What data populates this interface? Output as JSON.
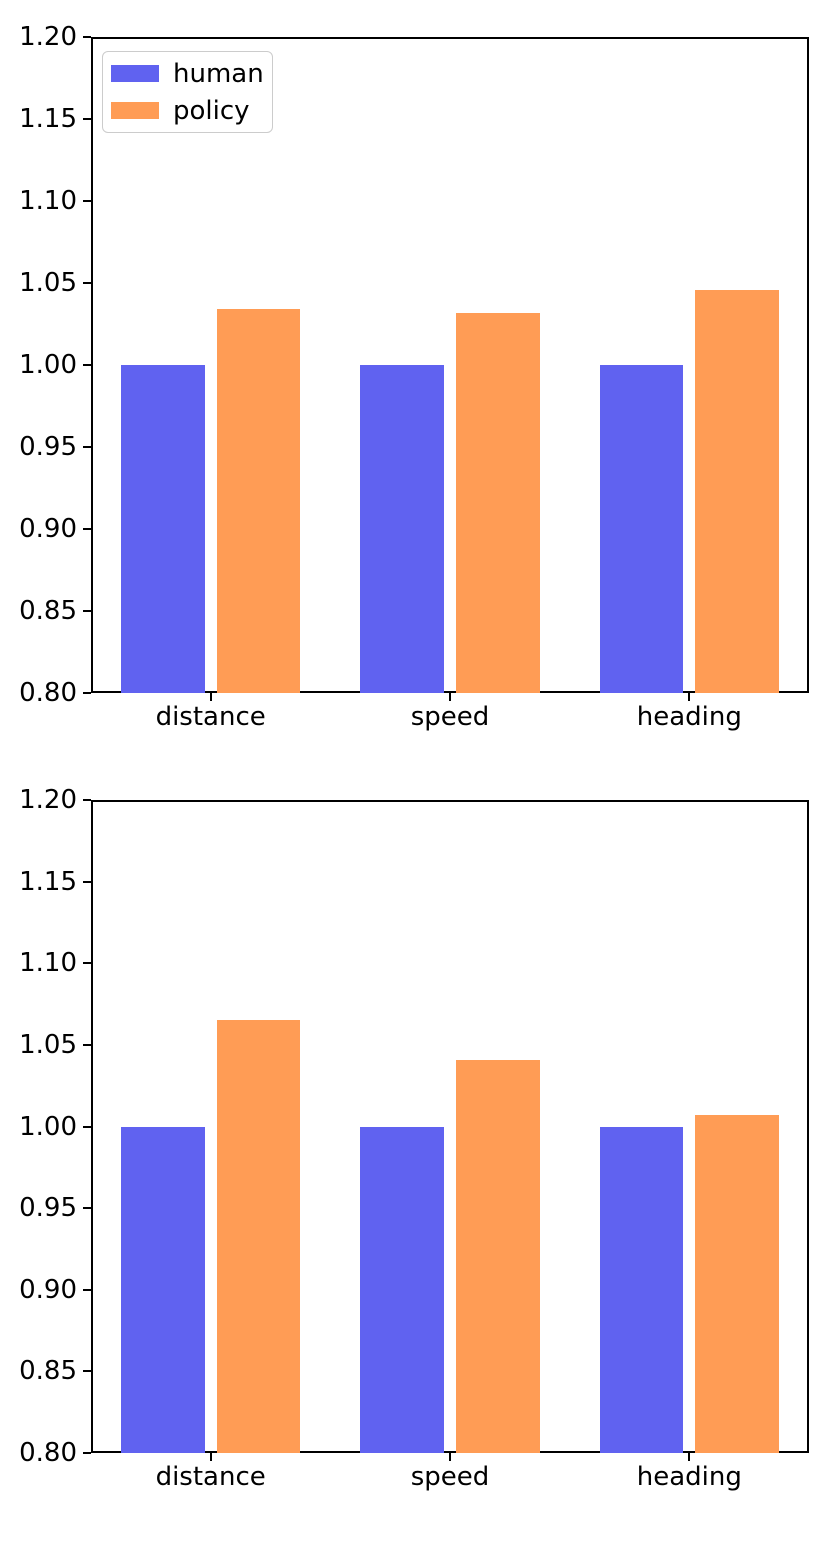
{
  "palette": {
    "human": "#6062F0",
    "policy": "#FF9C55",
    "axis": "#000000",
    "legend_border": "#cccccc"
  },
  "legend": {
    "position": "upper-left",
    "items": [
      {
        "label": "human",
        "color_key": "human"
      },
      {
        "label": "policy",
        "color_key": "policy"
      }
    ]
  },
  "chart_data": [
    {
      "type": "bar",
      "title": "",
      "xlabel": "",
      "ylabel": "",
      "categories": [
        "distance",
        "speed",
        "heading"
      ],
      "series": [
        {
          "name": "human",
          "values": [
            1.0,
            1.0,
            1.0
          ]
        },
        {
          "name": "policy",
          "values": [
            1.034,
            1.032,
            1.046
          ]
        }
      ],
      "ylim": [
        0.8,
        1.2
      ],
      "ytick_step": 0.05,
      "yticklabels": [
        "0.80",
        "0.85",
        "0.90",
        "0.95",
        "1.00",
        "1.05",
        "1.10",
        "1.15",
        "1.20"
      ],
      "grid": false,
      "show_legend": true,
      "legend_position": "upper-left"
    },
    {
      "type": "bar",
      "title": "",
      "xlabel": "",
      "ylabel": "",
      "categories": [
        "distance",
        "speed",
        "heading"
      ],
      "series": [
        {
          "name": "human",
          "values": [
            1.0,
            1.0,
            1.0
          ]
        },
        {
          "name": "policy",
          "values": [
            1.065,
            1.041,
            1.007
          ]
        }
      ],
      "ylim": [
        0.8,
        1.2
      ],
      "ytick_step": 0.05,
      "yticklabels": [
        "0.80",
        "0.85",
        "0.90",
        "0.95",
        "1.00",
        "1.05",
        "1.10",
        "1.15",
        "1.20"
      ],
      "grid": false,
      "show_legend": false,
      "legend_position": null
    }
  ]
}
